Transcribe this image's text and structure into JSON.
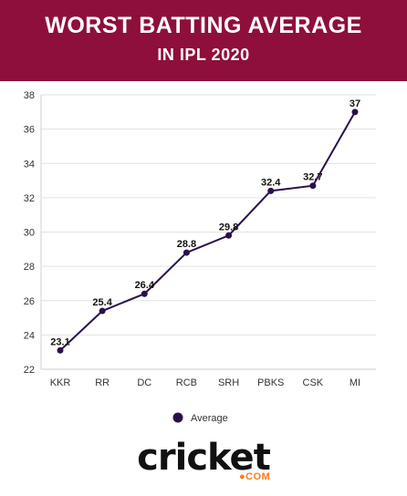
{
  "header": {
    "title": "WORST BATTING AVERAGE",
    "subtitle": "IN IPL 2020",
    "background": "#8e0f3b"
  },
  "chart_data": {
    "type": "line",
    "categories": [
      "KKR",
      "RR",
      "DC",
      "RCB",
      "SRH",
      "PBKS",
      "CSK",
      "MI"
    ],
    "series": [
      {
        "name": "Average",
        "values": [
          23.1,
          25.4,
          26.4,
          28.8,
          29.8,
          32.4,
          32.7,
          37
        ],
        "color": "#2b0f4c"
      }
    ],
    "ylim": [
      22,
      38
    ],
    "yticks": [
      22,
      24,
      26,
      28,
      30,
      32,
      34,
      36,
      38
    ],
    "grid": true,
    "legend_position": "bottom"
  },
  "logo": {
    "text": "cricket",
    "suffix": "●COM",
    "accent": "#ff7a1a"
  }
}
